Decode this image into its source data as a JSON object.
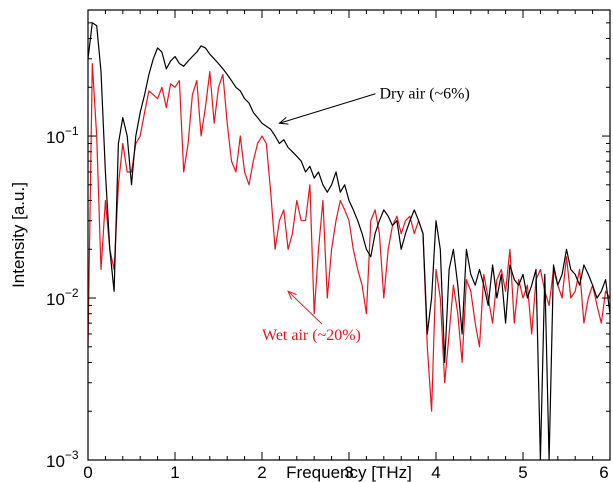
{
  "chart_data": {
    "type": "line",
    "title": "",
    "xlabel": "Frequency [THz]",
    "ylabel": "Intensity [a.u.]",
    "xlim": [
      0,
      6
    ],
    "ylim": [
      0.001,
      0.6
    ],
    "yscale": "log",
    "grid": false,
    "x_ticks": [
      0,
      1,
      2,
      3,
      4,
      5,
      6
    ],
    "x_tick_labels": [
      "0",
      "1",
      "2",
      "3",
      "4",
      "5",
      "6"
    ],
    "y_ticks": [
      0.1,
      0.01,
      0.001
    ],
    "y_tick_labels": [
      {
        "base": "10",
        "exp": "−1"
      },
      {
        "base": "10",
        "exp": "−2"
      },
      {
        "base": "10",
        "exp": "−3"
      }
    ],
    "series": [
      {
        "name": "Dry air (~6%)",
        "color": "#000000",
        "x": [
          0,
          0.05,
          0.1,
          0.15,
          0.2,
          0.25,
          0.3,
          0.35,
          0.4,
          0.45,
          0.5,
          0.55,
          0.6,
          0.65,
          0.7,
          0.75,
          0.8,
          0.85,
          0.9,
          0.95,
          1.0,
          1.05,
          1.1,
          1.15,
          1.2,
          1.25,
          1.3,
          1.35,
          1.4,
          1.45,
          1.5,
          1.55,
          1.6,
          1.65,
          1.7,
          1.75,
          1.8,
          1.85,
          1.9,
          1.95,
          2.0,
          2.05,
          2.1,
          2.15,
          2.2,
          2.25,
          2.3,
          2.35,
          2.4,
          2.45,
          2.5,
          2.55,
          2.6,
          2.65,
          2.7,
          2.75,
          2.8,
          2.85,
          2.9,
          2.95,
          3.0,
          3.05,
          3.1,
          3.15,
          3.2,
          3.25,
          3.3,
          3.35,
          3.4,
          3.45,
          3.5,
          3.55,
          3.6,
          3.65,
          3.7,
          3.75,
          3.8,
          3.85,
          3.9,
          3.95,
          4.0,
          4.05,
          4.1,
          4.15,
          4.2,
          4.25,
          4.3,
          4.35,
          4.4,
          4.45,
          4.5,
          4.55,
          4.6,
          4.65,
          4.7,
          4.75,
          4.8,
          4.85,
          4.9,
          4.95,
          5.0,
          5.05,
          5.1,
          5.15,
          5.2,
          5.25,
          5.3,
          5.35,
          5.4,
          5.45,
          5.5,
          5.55,
          5.6,
          5.65,
          5.7,
          5.75,
          5.8,
          5.85,
          5.9,
          5.95,
          6.0
        ],
        "y": [
          0.3,
          0.5,
          0.48,
          0.25,
          0.06,
          0.02,
          0.011,
          0.09,
          0.13,
          0.1,
          0.05,
          0.1,
          0.14,
          0.18,
          0.24,
          0.3,
          0.35,
          0.33,
          0.26,
          0.29,
          0.31,
          0.28,
          0.27,
          0.29,
          0.31,
          0.33,
          0.36,
          0.35,
          0.32,
          0.3,
          0.28,
          0.26,
          0.24,
          0.22,
          0.2,
          0.19,
          0.17,
          0.16,
          0.14,
          0.13,
          0.12,
          0.115,
          0.11,
          0.1,
          0.09,
          0.095,
          0.085,
          0.08,
          0.075,
          0.07,
          0.06,
          0.065,
          0.055,
          0.06,
          0.05,
          0.045,
          0.05,
          0.06,
          0.045,
          0.05,
          0.04,
          0.035,
          0.03,
          0.025,
          0.02,
          0.018,
          0.025,
          0.03,
          0.035,
          0.032,
          0.028,
          0.03,
          0.02,
          0.025,
          0.03,
          0.035,
          0.03,
          0.025,
          0.006,
          0.01,
          0.03,
          0.02,
          0.004,
          0.015,
          0.02,
          0.012,
          0.006,
          0.02,
          0.014,
          0.012,
          0.015,
          0.012,
          0.009,
          0.016,
          0.01,
          0.014,
          0.007,
          0.016,
          0.013,
          0.012,
          0.014,
          0.01,
          0.012,
          0.015,
          0.001,
          0.014,
          0.0008,
          0.016,
          0.012,
          0.014,
          0.02,
          0.015,
          0.014,
          0.012,
          0.016,
          0.014,
          0.012,
          0.01,
          0.011,
          0.013,
          0.008
        ]
      },
      {
        "name": "Wet air (~20%)",
        "color": "#e8141a",
        "x": [
          0,
          0.05,
          0.1,
          0.15,
          0.2,
          0.25,
          0.3,
          0.35,
          0.4,
          0.45,
          0.5,
          0.55,
          0.6,
          0.65,
          0.7,
          0.75,
          0.8,
          0.85,
          0.9,
          0.95,
          1.0,
          1.05,
          1.1,
          1.15,
          1.2,
          1.25,
          1.3,
          1.35,
          1.4,
          1.45,
          1.5,
          1.55,
          1.6,
          1.65,
          1.7,
          1.75,
          1.8,
          1.85,
          1.9,
          1.95,
          2.0,
          2.05,
          2.1,
          2.15,
          2.2,
          2.25,
          2.3,
          2.35,
          2.4,
          2.45,
          2.5,
          2.55,
          2.6,
          2.65,
          2.7,
          2.75,
          2.8,
          2.85,
          2.9,
          2.95,
          3.0,
          3.05,
          3.1,
          3.15,
          3.2,
          3.25,
          3.3,
          3.35,
          3.4,
          3.45,
          3.5,
          3.55,
          3.6,
          3.65,
          3.7,
          3.75,
          3.8,
          3.85,
          3.9,
          3.95,
          4.0,
          4.05,
          4.1,
          4.15,
          4.2,
          4.25,
          4.3,
          4.35,
          4.4,
          4.45,
          4.5,
          4.55,
          4.6,
          4.65,
          4.7,
          4.75,
          4.8,
          4.85,
          4.9,
          4.95,
          5.0,
          5.05,
          5.1,
          5.15,
          5.2,
          5.25,
          5.3,
          5.35,
          5.4,
          5.45,
          5.5,
          5.55,
          5.6,
          5.65,
          5.7,
          5.75,
          5.8,
          5.85,
          5.9,
          5.95,
          6.0
        ],
        "y": [
          0.005,
          0.28,
          0.1,
          0.015,
          0.04,
          0.02,
          0.015,
          0.05,
          0.09,
          0.06,
          0.06,
          0.09,
          0.1,
          0.14,
          0.19,
          0.18,
          0.17,
          0.2,
          0.15,
          0.21,
          0.2,
          0.22,
          0.06,
          0.09,
          0.18,
          0.22,
          0.1,
          0.15,
          0.25,
          0.12,
          0.2,
          0.24,
          0.12,
          0.07,
          0.06,
          0.1,
          0.06,
          0.05,
          0.07,
          0.09,
          0.1,
          0.09,
          0.045,
          0.02,
          0.03,
          0.035,
          0.02,
          0.025,
          0.04,
          0.03,
          0.03,
          0.05,
          0.008,
          0.02,
          0.04,
          0.01,
          0.02,
          0.03,
          0.04,
          0.035,
          0.03,
          0.02,
          0.015,
          0.012,
          0.008,
          0.03,
          0.035,
          0.025,
          0.01,
          0.02,
          0.028,
          0.032,
          0.025,
          0.03,
          0.032,
          0.025,
          0.03,
          0.025,
          0.005,
          0.002,
          0.015,
          0.01,
          0.003,
          0.006,
          0.012,
          0.008,
          0.004,
          0.013,
          0.011,
          0.007,
          0.005,
          0.014,
          0.01,
          0.007,
          0.013,
          0.015,
          0.011,
          0.02,
          0.007,
          0.013,
          0.01,
          0.012,
          0.006,
          0.013,
          0.015,
          0.011,
          0.009,
          0.015,
          0.012,
          0.01,
          0.018,
          0.01,
          0.011,
          0.015,
          0.007,
          0.01,
          0.012,
          0.009,
          0.007,
          0.011,
          0.01
        ]
      }
    ],
    "annotations": [
      {
        "text": "Dry air (~6%)",
        "color": "#000000",
        "x": 3.35,
        "y": 0.17,
        "arrow_to": {
          "x": 2.2,
          "y": 0.12
        }
      },
      {
        "text": "Wet air (~20%)",
        "color": "#e8141a",
        "x": 2.0,
        "y": 0.0055,
        "arrow_to": {
          "x": 2.3,
          "y": 0.011
        }
      }
    ]
  }
}
